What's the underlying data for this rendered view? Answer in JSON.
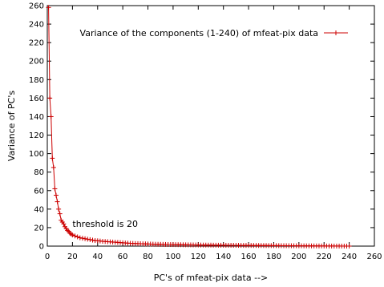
{
  "chart_data": {
    "type": "line",
    "xlabel": "PC's of mfeat-pix data -->",
    "ylabel": "Variance of PC's",
    "xlim": [
      0,
      260
    ],
    "ylim": [
      0,
      260
    ],
    "x_ticks": [
      "0",
      "20",
      "40",
      "60",
      "80",
      "100",
      "120",
      "140",
      "160",
      "180",
      "200",
      "220",
      "240",
      "260"
    ],
    "y_ticks": [
      "0",
      "20",
      "40",
      "60",
      "80",
      "100",
      "120",
      "140",
      "160",
      "180",
      "200",
      "220",
      "240",
      "260"
    ],
    "grid": false,
    "legend_position": "top-right",
    "annotation": {
      "text": "threshold is 20",
      "x": 20,
      "y": 20
    },
    "series": [
      {
        "name": "Variance of the components (1-240) of mfeat-pix data",
        "color": "#cc0000",
        "marker": "plus",
        "x": [
          1,
          2,
          3,
          4,
          5,
          6,
          7,
          8,
          9,
          10,
          11,
          12,
          13,
          14,
          15,
          16,
          17,
          18,
          19,
          20,
          22,
          24,
          26,
          28,
          30,
          32,
          34,
          36,
          38,
          40,
          42,
          44,
          46,
          48,
          50,
          52,
          54,
          56,
          58,
          60,
          62,
          64,
          66,
          68,
          70,
          72,
          74,
          76,
          78,
          80,
          82,
          84,
          86,
          88,
          90,
          92,
          94,
          96,
          98,
          100,
          102,
          104,
          106,
          108,
          110,
          112,
          114,
          116,
          118,
          120,
          122,
          124,
          126,
          128,
          130,
          132,
          134,
          136,
          138,
          140,
          142,
          144,
          146,
          148,
          150,
          152,
          154,
          156,
          158,
          160,
          162,
          164,
          166,
          168,
          170,
          172,
          174,
          176,
          178,
          180,
          182,
          184,
          186,
          188,
          190,
          192,
          194,
          196,
          198,
          200,
          202,
          204,
          206,
          208,
          210,
          212,
          214,
          216,
          218,
          220,
          222,
          224,
          226,
          228,
          230,
          232,
          234,
          236,
          238,
          240
        ],
        "y": [
          258,
          160,
          140,
          95,
          85,
          62,
          55,
          48,
          40,
          35,
          28,
          26,
          24,
          21,
          19,
          17,
          16,
          14,
          13,
          12,
          11,
          10,
          9,
          8.5,
          8,
          7.5,
          7,
          6.5,
          6,
          5.8,
          5.5,
          5.2,
          5,
          4.8,
          4.6,
          4.4,
          4.2,
          4,
          3.8,
          3.6,
          3.4,
          3.2,
          3,
          2.9,
          2.8,
          2.7,
          2.6,
          2.5,
          2.4,
          2.3,
          2.2,
          2.1,
          2,
          1.95,
          1.9,
          1.85,
          1.8,
          1.75,
          1.7,
          1.65,
          1.6,
          1.55,
          1.5,
          1.45,
          1.4,
          1.36,
          1.32,
          1.28,
          1.24,
          1.2,
          1.17,
          1.14,
          1.11,
          1.08,
          1.05,
          1.02,
          1.0,
          0.98,
          0.96,
          0.94,
          0.92,
          0.9,
          0.88,
          0.86,
          0.84,
          0.82,
          0.8,
          0.78,
          0.76,
          0.74,
          0.72,
          0.7,
          0.68,
          0.66,
          0.64,
          0.62,
          0.6,
          0.58,
          0.56,
          0.54,
          0.52,
          0.5,
          0.48,
          0.46,
          0.44,
          0.42,
          0.4,
          0.38,
          0.36,
          0.34,
          0.32,
          0.3,
          0.28,
          0.26,
          0.24,
          0.22,
          0.2,
          0.18,
          0.16,
          0.14,
          0.12,
          0.1,
          0.09,
          0.08,
          0.07,
          0.06,
          0.05,
          0.04,
          0.03,
          0.02
        ]
      }
    ]
  }
}
